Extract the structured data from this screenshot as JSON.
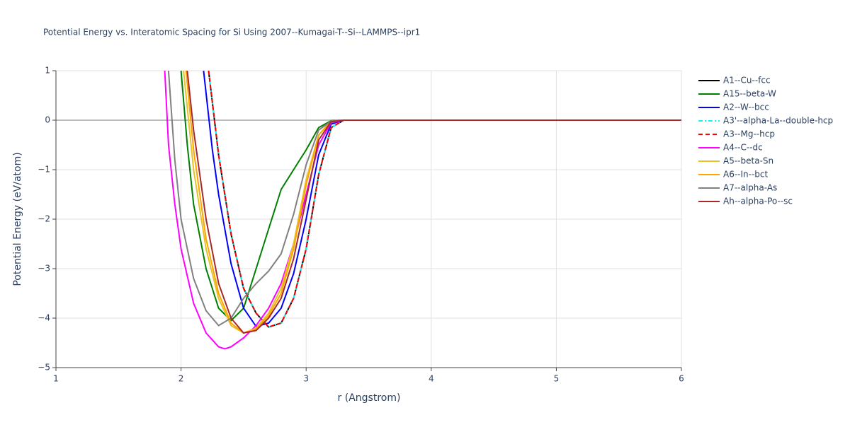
{
  "chart_data": {
    "type": "line",
    "title": "Potential Energy vs. Interatomic Spacing for Si Using 2007--Kumagai-T--Si--LAMMPS--ipr1",
    "x_label": "r (Angstrom)",
    "y_label": "Potential Energy (eV/atom)",
    "xlim": [
      1,
      6
    ],
    "ylim": [
      -5,
      1
    ],
    "xticks": [
      1,
      2,
      3,
      4,
      5,
      6
    ],
    "yticks": [
      {
        "value": -5,
        "label": "−5"
      },
      {
        "value": -4,
        "label": "−4"
      },
      {
        "value": -3,
        "label": "−3"
      },
      {
        "value": -2,
        "label": "−2"
      },
      {
        "value": -1,
        "label": "−1"
      },
      0,
      1
    ],
    "grid": true,
    "legend": "right",
    "series": [
      {
        "name": "A1--Cu--fcc",
        "color": "#000000",
        "dash": "solid",
        "x": [
          2.22,
          2.3,
          2.4,
          2.5,
          2.6,
          2.7,
          2.8,
          2.9,
          3.0,
          3.1,
          3.2,
          3.3,
          6
        ],
        "values": [
          1,
          -0.7,
          -2.3,
          -3.4,
          -3.9,
          -4.18,
          -4.1,
          -3.6,
          -2.6,
          -1.1,
          -0.15,
          0,
          0
        ]
      },
      {
        "name": "A15--beta-W",
        "color": "#008000",
        "dash": "solid",
        "x": [
          2.0,
          2.05,
          2.1,
          2.2,
          2.3,
          2.4,
          2.5,
          2.6,
          2.7,
          2.8,
          2.9,
          3.0,
          3.1,
          3.2,
          3.3,
          6
        ],
        "values": [
          1,
          -0.5,
          -1.7,
          -3.0,
          -3.8,
          -4.05,
          -3.8,
          -3.0,
          -2.2,
          -1.4,
          -1.0,
          -0.6,
          -0.15,
          -0.01,
          0,
          0
        ]
      },
      {
        "name": "A2--W--bcc",
        "color": "#0000ff",
        "dash": "solid",
        "x": [
          2.18,
          2.25,
          2.3,
          2.4,
          2.5,
          2.6,
          2.7,
          2.8,
          2.9,
          3.0,
          3.1,
          3.2,
          3.3,
          6
        ],
        "values": [
          1,
          -0.6,
          -1.5,
          -2.9,
          -3.8,
          -4.17,
          -4.1,
          -3.8,
          -3.1,
          -2.0,
          -0.7,
          -0.08,
          0,
          0
        ]
      },
      {
        "name": "A3'--alpha-La--double-hcp",
        "color": "#00ffff",
        "dash": "dashdot",
        "x": [
          2.22,
          2.3,
          2.4,
          2.5,
          2.6,
          2.7,
          2.8,
          2.9,
          3.0,
          3.1,
          3.2,
          3.3,
          6
        ],
        "values": [
          1,
          -0.7,
          -2.3,
          -3.4,
          -3.9,
          -4.18,
          -4.1,
          -3.6,
          -2.6,
          -1.1,
          -0.15,
          0,
          0
        ]
      },
      {
        "name": "A3--Mg--hcp",
        "color": "#ff0000",
        "dash": "dash",
        "x": [
          2.22,
          2.3,
          2.4,
          2.5,
          2.6,
          2.7,
          2.8,
          2.9,
          3.0,
          3.1,
          3.2,
          3.3,
          6
        ],
        "values": [
          1,
          -0.7,
          -2.3,
          -3.4,
          -3.9,
          -4.18,
          -4.1,
          -3.6,
          -2.6,
          -1.1,
          -0.15,
          0,
          0
        ]
      },
      {
        "name": "A4--C--dc",
        "color": "#ff00ff",
        "dash": "solid",
        "x": [
          1.87,
          1.9,
          1.95,
          2.0,
          2.1,
          2.2,
          2.3,
          2.35,
          2.4,
          2.5,
          2.6,
          2.7,
          2.8,
          2.9,
          3.0,
          3.1,
          3.2,
          3.3,
          6
        ],
        "values": [
          1,
          -0.5,
          -1.7,
          -2.6,
          -3.7,
          -4.3,
          -4.58,
          -4.62,
          -4.58,
          -4.4,
          -4.15,
          -3.8,
          -3.3,
          -2.5,
          -1.5,
          -0.5,
          -0.05,
          0,
          0
        ]
      },
      {
        "name": "A5--beta-Sn",
        "color": "#e6c229",
        "dash": "solid",
        "x": [
          2.02,
          2.1,
          2.2,
          2.3,
          2.4,
          2.5,
          2.6,
          2.7,
          2.8,
          2.9,
          3.0,
          3.1,
          3.2,
          3.3,
          6
        ],
        "values": [
          1,
          -1.0,
          -2.6,
          -3.6,
          -4.15,
          -4.3,
          -4.2,
          -3.9,
          -3.4,
          -2.5,
          -1.2,
          -0.3,
          -0.02,
          0,
          0
        ]
      },
      {
        "name": "A6--In--bct",
        "color": "#ffa500",
        "dash": "solid",
        "x": [
          2.04,
          2.1,
          2.2,
          2.3,
          2.4,
          2.5,
          2.6,
          2.7,
          2.8,
          2.9,
          3.0,
          3.1,
          3.2,
          3.3,
          6
        ],
        "values": [
          1,
          -0.6,
          -2.4,
          -3.5,
          -4.1,
          -4.3,
          -4.22,
          -3.95,
          -3.5,
          -2.6,
          -1.3,
          -0.3,
          -0.02,
          0,
          0
        ]
      },
      {
        "name": "A7--alpha-As",
        "color": "#808080",
        "dash": "solid",
        "x": [
          1.9,
          1.95,
          2.0,
          2.1,
          2.2,
          2.3,
          2.4,
          2.5,
          2.6,
          2.7,
          2.8,
          2.9,
          3.0,
          3.1,
          3.2,
          3.3,
          6
        ],
        "values": [
          1,
          -0.8,
          -2.0,
          -3.2,
          -3.85,
          -4.15,
          -4.0,
          -3.6,
          -3.3,
          -3.05,
          -2.7,
          -1.9,
          -0.9,
          -0.2,
          -0.02,
          0,
          0
        ]
      },
      {
        "name": "Ah--alpha-Po--sc",
        "color": "#a52a2a",
        "dash": "solid",
        "x": [
          2.05,
          2.1,
          2.2,
          2.3,
          2.4,
          2.5,
          2.6,
          2.7,
          2.8,
          2.9,
          3.0,
          3.1,
          3.2,
          3.3,
          6
        ],
        "values": [
          1,
          -0.2,
          -2.0,
          -3.3,
          -4.0,
          -4.3,
          -4.25,
          -4.0,
          -3.6,
          -2.8,
          -1.6,
          -0.4,
          -0.03,
          0,
          0
        ]
      }
    ]
  }
}
